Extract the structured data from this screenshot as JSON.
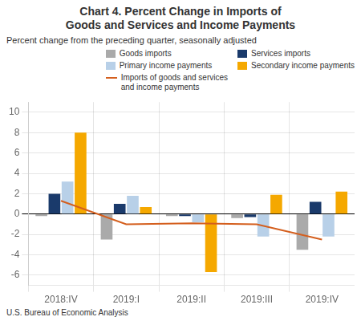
{
  "chart_data": {
    "type": "bar",
    "title": [
      "Chart 4. Percent Change in Imports of",
      "Goods and Services and Income Payments"
    ],
    "subtitle": "Percent change from the preceding quarter, seasonally adjusted",
    "footnote": "U.S. Bureau of Economic Analysis",
    "categories": [
      "2018:IV",
      "2019:I",
      "2019:II",
      "2019:III",
      "2019:IV"
    ],
    "series": [
      {
        "name": "Goods imports",
        "color": "#aaaaaa",
        "values": [
          -0.2,
          -2.5,
          -0.2,
          -0.4,
          -3.5
        ]
      },
      {
        "name": "Services imports",
        "color": "#1a3a6b",
        "values": [
          2.0,
          1.0,
          -0.2,
          -0.3,
          1.2
        ]
      },
      {
        "name": "Primary income payments",
        "color": "#b8d0e8",
        "values": [
          3.2,
          1.8,
          -0.8,
          -2.2,
          -2.2
        ]
      },
      {
        "name": "Secondary income payments",
        "color": "#f5a800",
        "values": [
          8.0,
          0.7,
          -5.7,
          1.9,
          2.2
        ]
      },
      {
        "name": "Imports of goods and services\nand income payments",
        "type": "line",
        "color": "#d45f1e",
        "values": [
          1.3,
          -1.0,
          -0.9,
          -1.0,
          -2.5
        ]
      }
    ],
    "ylim": [
      -7,
      11
    ],
    "yticks": [
      -6,
      -4,
      -2,
      0,
      2,
      4,
      6,
      8,
      10
    ],
    "grid": true,
    "legend": "upper right"
  }
}
